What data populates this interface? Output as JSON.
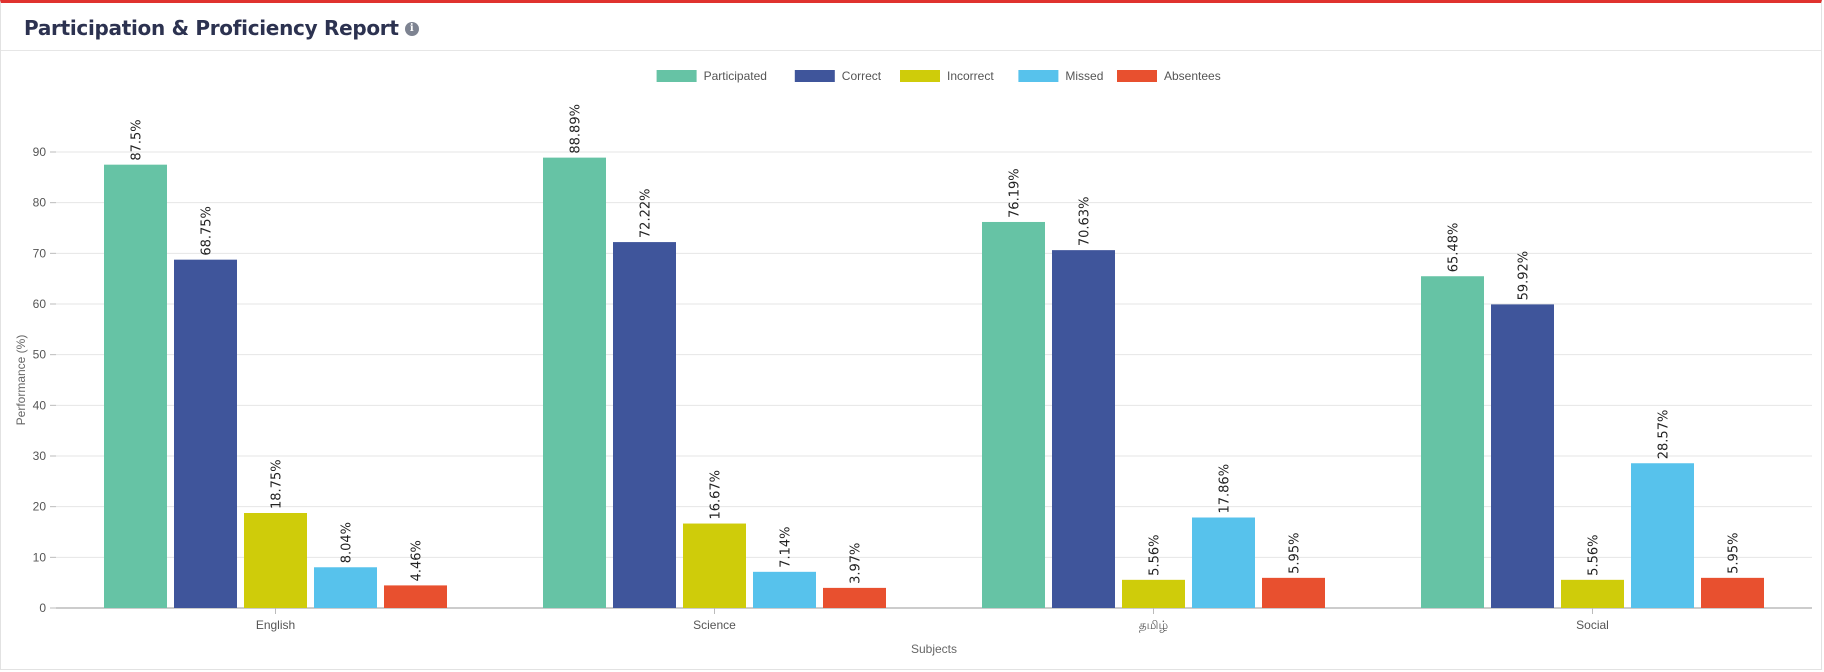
{
  "header": {
    "title": "Participation & Proficiency Report",
    "info_icon": "info-icon"
  },
  "chart_data": {
    "type": "bar",
    "categories": [
      "English",
      "Science",
      "தமிழ்",
      "Social"
    ],
    "series": [
      {
        "name": "Participated",
        "color": "#66c3a5",
        "values": [
          87.5,
          88.89,
          76.19,
          65.48
        ],
        "labels": [
          "87.5%",
          "88.89%",
          "76.19%",
          "65.48%"
        ]
      },
      {
        "name": "Correct",
        "color": "#3f559b",
        "values": [
          68.75,
          72.22,
          70.63,
          59.92
        ],
        "labels": [
          "68.75%",
          "72.22%",
          "70.63%",
          "59.92%"
        ]
      },
      {
        "name": "Incorrect",
        "color": "#cfcc0a",
        "values": [
          18.75,
          16.67,
          5.56,
          5.56
        ],
        "labels": [
          "18.75%",
          "16.67%",
          "5.56%",
          "5.56%"
        ]
      },
      {
        "name": "Missed",
        "color": "#57c2ec",
        "values": [
          8.04,
          7.14,
          17.86,
          28.57
        ],
        "labels": [
          "8.04%",
          "7.14%",
          "17.86%",
          "28.57%"
        ]
      },
      {
        "name": "Absentees",
        "color": "#e8502f",
        "values": [
          4.46,
          3.97,
          5.95,
          5.95
        ],
        "labels": [
          "4.46%",
          "3.97%",
          "5.95%",
          "5.95%"
        ]
      }
    ],
    "xlabel": "Subjects",
    "ylabel": "Performance (%)",
    "ylim": [
      0,
      90
    ],
    "yticks": [
      0,
      10,
      20,
      30,
      40,
      50,
      60,
      70,
      80,
      90
    ],
    "grid": true,
    "legend": "top-center"
  }
}
